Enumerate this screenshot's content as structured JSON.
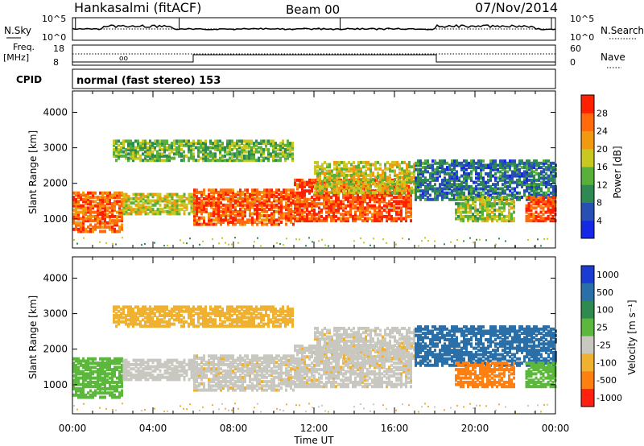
{
  "header": {
    "station": "Hankasalmi (fitACF)",
    "beam": "Beam 00",
    "date": "07/Nov/2014"
  },
  "noise_panel": {
    "left_label": "N.Sky",
    "right_label": "N.Search",
    "left_ticks": [
      "10^5",
      "10^0"
    ],
    "right_ticks": [
      "10^5",
      "10^0"
    ]
  },
  "freq_panel": {
    "left_label_1": "Freq.",
    "left_label_2": "[MHz]",
    "left_ticks": [
      "18",
      "8"
    ],
    "right_label": "Nave",
    "right_ticks": [
      "60",
      "0"
    ]
  },
  "cpid": {
    "label": "CPID",
    "mode": "normal (fast stereo) 153"
  },
  "power_panel": {
    "ylabel": "Slant Range [km]",
    "yticks": [
      "1000",
      "2000",
      "3000",
      "4000"
    ],
    "colorbar_label": "Power [dB]",
    "colorbar_ticks": [
      "4",
      "8",
      "12",
      "16",
      "20",
      "24",
      "28"
    ],
    "colors": [
      "#1428e6",
      "#2850b4",
      "#2e8a50",
      "#58b03a",
      "#c8c820",
      "#f09a10",
      "#ff6a0a",
      "#ff2000"
    ]
  },
  "velocity_panel": {
    "ylabel": "Slant Range [km]",
    "yticks": [
      "1000",
      "2000",
      "3000",
      "4000"
    ],
    "colorbar_label": "Velocity [m s⁻¹]",
    "colorbar_ticks": [
      "1000",
      "500",
      "100",
      "25",
      "-25",
      "-100",
      "-500",
      "-1000"
    ],
    "colors": [
      "#1a3cd2",
      "#2b6fa8",
      "#2e8a4e",
      "#5cb83c",
      "#c8c8c0",
      "#f0b030",
      "#ff8010",
      "#ff2010"
    ]
  },
  "xaxis": {
    "label": "Time UT",
    "ticks": [
      "00:00",
      "04:00",
      "08:00",
      "12:00",
      "16:00",
      "20:00",
      "00:00"
    ]
  },
  "chart_data": {
    "type": "heatmap",
    "title": "Hankasalmi (fitACF)  Beam 00  07/Nov/2014",
    "xlabel": "Time UT",
    "ylabel": "Slant Range [km]",
    "x_range": [
      "00:00",
      "24:00"
    ],
    "y_range": [
      180,
      4600
    ],
    "power_colorbar": {
      "label": "Power [dB]",
      "range": [
        0,
        32
      ],
      "ticks": [
        4,
        8,
        12,
        16,
        20,
        24,
        28
      ]
    },
    "velocity_colorbar": {
      "label": "Velocity [m s^-1]",
      "levels": [
        1000,
        500,
        100,
        25,
        -25,
        -100,
        -500,
        -1000
      ]
    },
    "freq_mhz_range": [
      8,
      18
    ],
    "nave_range": [
      0,
      60
    ],
    "noise_range_log": [
      0,
      5
    ],
    "echo_regions": [
      {
        "start_h": 0.0,
        "end_h": 2.5,
        "range_lo_km": 600,
        "range_hi_km": 1700,
        "power_db": 26,
        "velocity": 100
      },
      {
        "start_h": 2.5,
        "end_h": 6.0,
        "range_lo_km": 1100,
        "range_hi_km": 1700,
        "power_db": 18,
        "velocity": 25
      },
      {
        "start_h": 6.0,
        "end_h": 11.0,
        "range_lo_km": 800,
        "range_hi_km": 1800,
        "power_db": 27,
        "velocity": 0
      },
      {
        "start_h": 11.0,
        "end_h": 16.8,
        "range_lo_km": 900,
        "range_hi_km": 2100,
        "power_db": 28,
        "velocity": 0
      },
      {
        "start_h": 12.0,
        "end_h": 17.0,
        "range_lo_km": 1700,
        "range_hi_km": 2600,
        "power_db": 18,
        "velocity": 0
      },
      {
        "start_h": 2.0,
        "end_h": 11.0,
        "range_lo_km": 2600,
        "range_hi_km": 3200,
        "power_db": 14,
        "velocity": -100
      },
      {
        "start_h": 17.0,
        "end_h": 24.0,
        "range_lo_km": 1500,
        "range_hi_km": 2600,
        "power_db": 8,
        "velocity": 500
      },
      {
        "start_h": 19.0,
        "end_h": 22.0,
        "range_lo_km": 900,
        "range_hi_km": 1600,
        "power_db": 16,
        "velocity": -500
      },
      {
        "start_h": 22.5,
        "end_h": 24.0,
        "range_lo_km": 900,
        "range_hi_km": 1600,
        "power_db": 28,
        "velocity": 100
      }
    ]
  }
}
